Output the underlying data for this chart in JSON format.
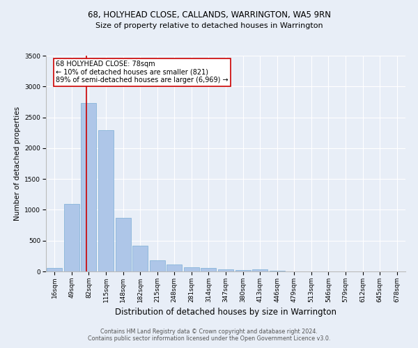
{
  "title1": "68, HOLYHEAD CLOSE, CALLANDS, WARRINGTON, WA5 9RN",
  "title2": "Size of property relative to detached houses in Warrington",
  "xlabel": "Distribution of detached houses by size in Warrington",
  "ylabel": "Number of detached properties",
  "footer1": "Contains HM Land Registry data © Crown copyright and database right 2024.",
  "footer2": "Contains public sector information licensed under the Open Government Licence v3.0.",
  "annotation_title": "68 HOLYHEAD CLOSE: 78sqm",
  "annotation_line2": "← 10% of detached houses are smaller (821)",
  "annotation_line3": "89% of semi-detached houses are larger (6,969) →",
  "categories": [
    "16sqm",
    "49sqm",
    "82sqm",
    "115sqm",
    "148sqm",
    "182sqm",
    "215sqm",
    "248sqm",
    "281sqm",
    "314sqm",
    "347sqm",
    "380sqm",
    "413sqm",
    "446sqm",
    "479sqm",
    "513sqm",
    "546sqm",
    "579sqm",
    "612sqm",
    "645sqm",
    "678sqm"
  ],
  "values": [
    55,
    1095,
    2730,
    2290,
    870,
    420,
    185,
    110,
    70,
    55,
    35,
    20,
    30,
    15,
    5,
    3,
    2,
    1,
    1,
    0,
    0
  ],
  "bar_color": "#aec6e8",
  "bar_edge_color": "#7aadd4",
  "vline_color": "#cc0000",
  "annotation_box_edge_color": "#cc0000",
  "background_color": "#e8eef7",
  "plot_bg_color": "#e8eef7",
  "ylim": [
    0,
    3500
  ],
  "yticks": [
    0,
    500,
    1000,
    1500,
    2000,
    2500,
    3000,
    3500
  ],
  "title1_fontsize": 8.5,
  "title2_fontsize": 8.0,
  "ylabel_fontsize": 7.5,
  "xlabel_fontsize": 8.5,
  "tick_fontsize": 6.5,
  "footer_fontsize": 5.8,
  "annot_fontsize": 7.0,
  "vline_x_index": 1.88
}
